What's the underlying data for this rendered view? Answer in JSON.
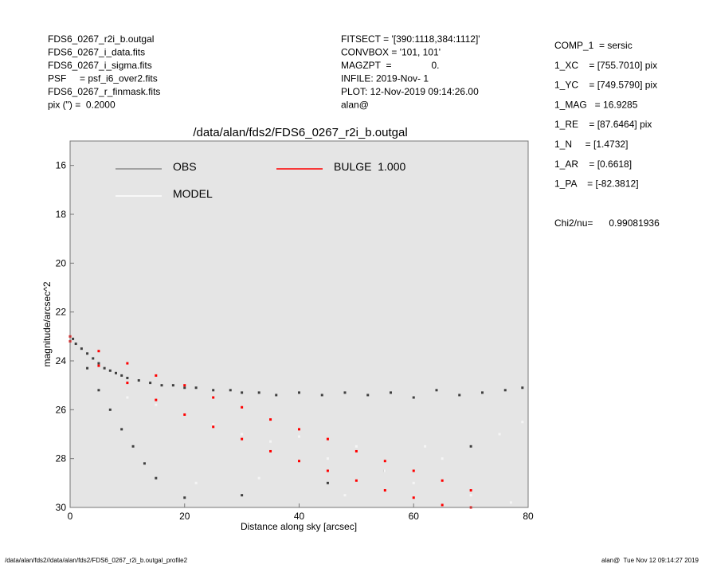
{
  "chart_data": {
    "type": "scatter",
    "title": "/data/alan/fds2/FDS6_0267_r2i_b.outgal",
    "x_label": "Distance along sky [arcsec]",
    "y_label": "magnitude/arcsec^2",
    "xlim": [
      0,
      80
    ],
    "xticks": [
      0,
      20,
      40,
      60,
      80
    ],
    "ylim": [
      15,
      30
    ],
    "yticks": [
      16,
      18,
      20,
      22,
      24,
      26,
      28,
      30
    ],
    "y_inverted": true,
    "background": "#e5e5e5",
    "header_left": [
      "FDS6_0267_r2i_b.outgal",
      "FDS6_0267_i_data.fits",
      "FDS6_0267_i_sigma.fits",
      "PSF     = psf_i6_over2.fits",
      "FDS6_0267_r_finmask.fits",
      "pix (\") =  0.2000"
    ],
    "header_middle": [
      "FITSECT = '[390:1118,384:1112]'",
      "CONVBOX = '101, 101'",
      "MAGZPT  =               0.",
      "INFILE: 2019-Nov- 1",
      "PLOT: 12-Nov-2019 09:14:26.00",
      "alan@"
    ],
    "parameters": [
      "COMP_1  = sersic",
      "1_XC    = [755.7010] pix",
      "1_YC    = [749.5790] pix",
      "1_MAG   = 16.9285",
      "1_RE    = [87.6464] pix",
      "1_N     = [1.4732]",
      "1_AR    = [0.6618]",
      "1_PA    = [-82.3812]"
    ],
    "chi2": "Chi2/nu=      0.99081936",
    "footer_left": "/data/alan/fds2//data/alan/fds2/FDS6_0267_r2i_b.outgal_profile2",
    "footer_right": "alan@  Tue Nov 12 09:14:27 2019",
    "series": [
      {
        "name": "OBS",
        "color": "#3f3f3f",
        "legend_color": "#8c8c8c",
        "x": [
          0.5,
          1,
          2,
          3,
          4,
          5,
          6,
          7,
          8,
          9,
          10,
          12,
          14,
          16,
          18,
          20,
          22,
          25,
          28,
          30,
          33,
          36,
          40,
          44,
          48,
          52,
          56,
          60,
          64,
          68,
          72,
          76,
          79,
          3,
          5,
          7,
          9,
          11,
          13,
          15,
          20,
          30,
          45,
          55,
          70
        ],
        "values": [
          23.1,
          23.3,
          23.5,
          23.7,
          23.9,
          24.1,
          24.3,
          24.4,
          24.5,
          24.6,
          24.7,
          24.8,
          24.9,
          25.0,
          25.0,
          25.1,
          25.1,
          25.2,
          25.2,
          25.3,
          25.3,
          25.4,
          25.3,
          25.4,
          25.3,
          25.4,
          25.3,
          25.5,
          25.2,
          25.4,
          25.3,
          25.2,
          25.1,
          24.3,
          25.2,
          26.0,
          26.8,
          27.5,
          28.2,
          28.8,
          29.6,
          29.5,
          29.0,
          28.5,
          27.5
        ]
      },
      {
        "name": "MODEL",
        "color": "#f5f5f5",
        "legend_color": "#ffffff",
        "x": [
          15,
          20,
          25,
          30,
          35,
          40,
          45,
          50,
          55,
          60,
          65,
          70,
          75,
          79,
          10,
          22,
          33,
          48,
          62,
          77
        ],
        "values": [
          25.8,
          26.2,
          26.6,
          27.0,
          27.3,
          27.1,
          28.0,
          27.5,
          28.5,
          29.0,
          28.0,
          29.5,
          27.0,
          26.5,
          25.5,
          29.0,
          28.8,
          29.5,
          27.5,
          29.8
        ]
      },
      {
        "name": "BULGE  1.000",
        "color": "#ff0000",
        "legend_color": "#ff0000",
        "x": [
          0,
          5,
          10,
          15,
          20,
          25,
          30,
          35,
          40,
          45,
          50,
          55,
          60,
          65,
          70,
          0,
          5,
          10,
          15,
          20,
          25,
          30,
          35,
          40,
          45,
          50,
          55,
          60,
          65,
          70
        ],
        "values": [
          23.0,
          23.6,
          24.1,
          24.6,
          25.0,
          25.5,
          25.9,
          26.4,
          26.8,
          27.2,
          27.7,
          28.1,
          28.5,
          28.9,
          29.3,
          23.2,
          24.2,
          24.9,
          25.6,
          26.2,
          26.7,
          27.2,
          27.7,
          28.1,
          28.5,
          28.9,
          29.3,
          29.6,
          29.9,
          30.0
        ]
      }
    ]
  }
}
